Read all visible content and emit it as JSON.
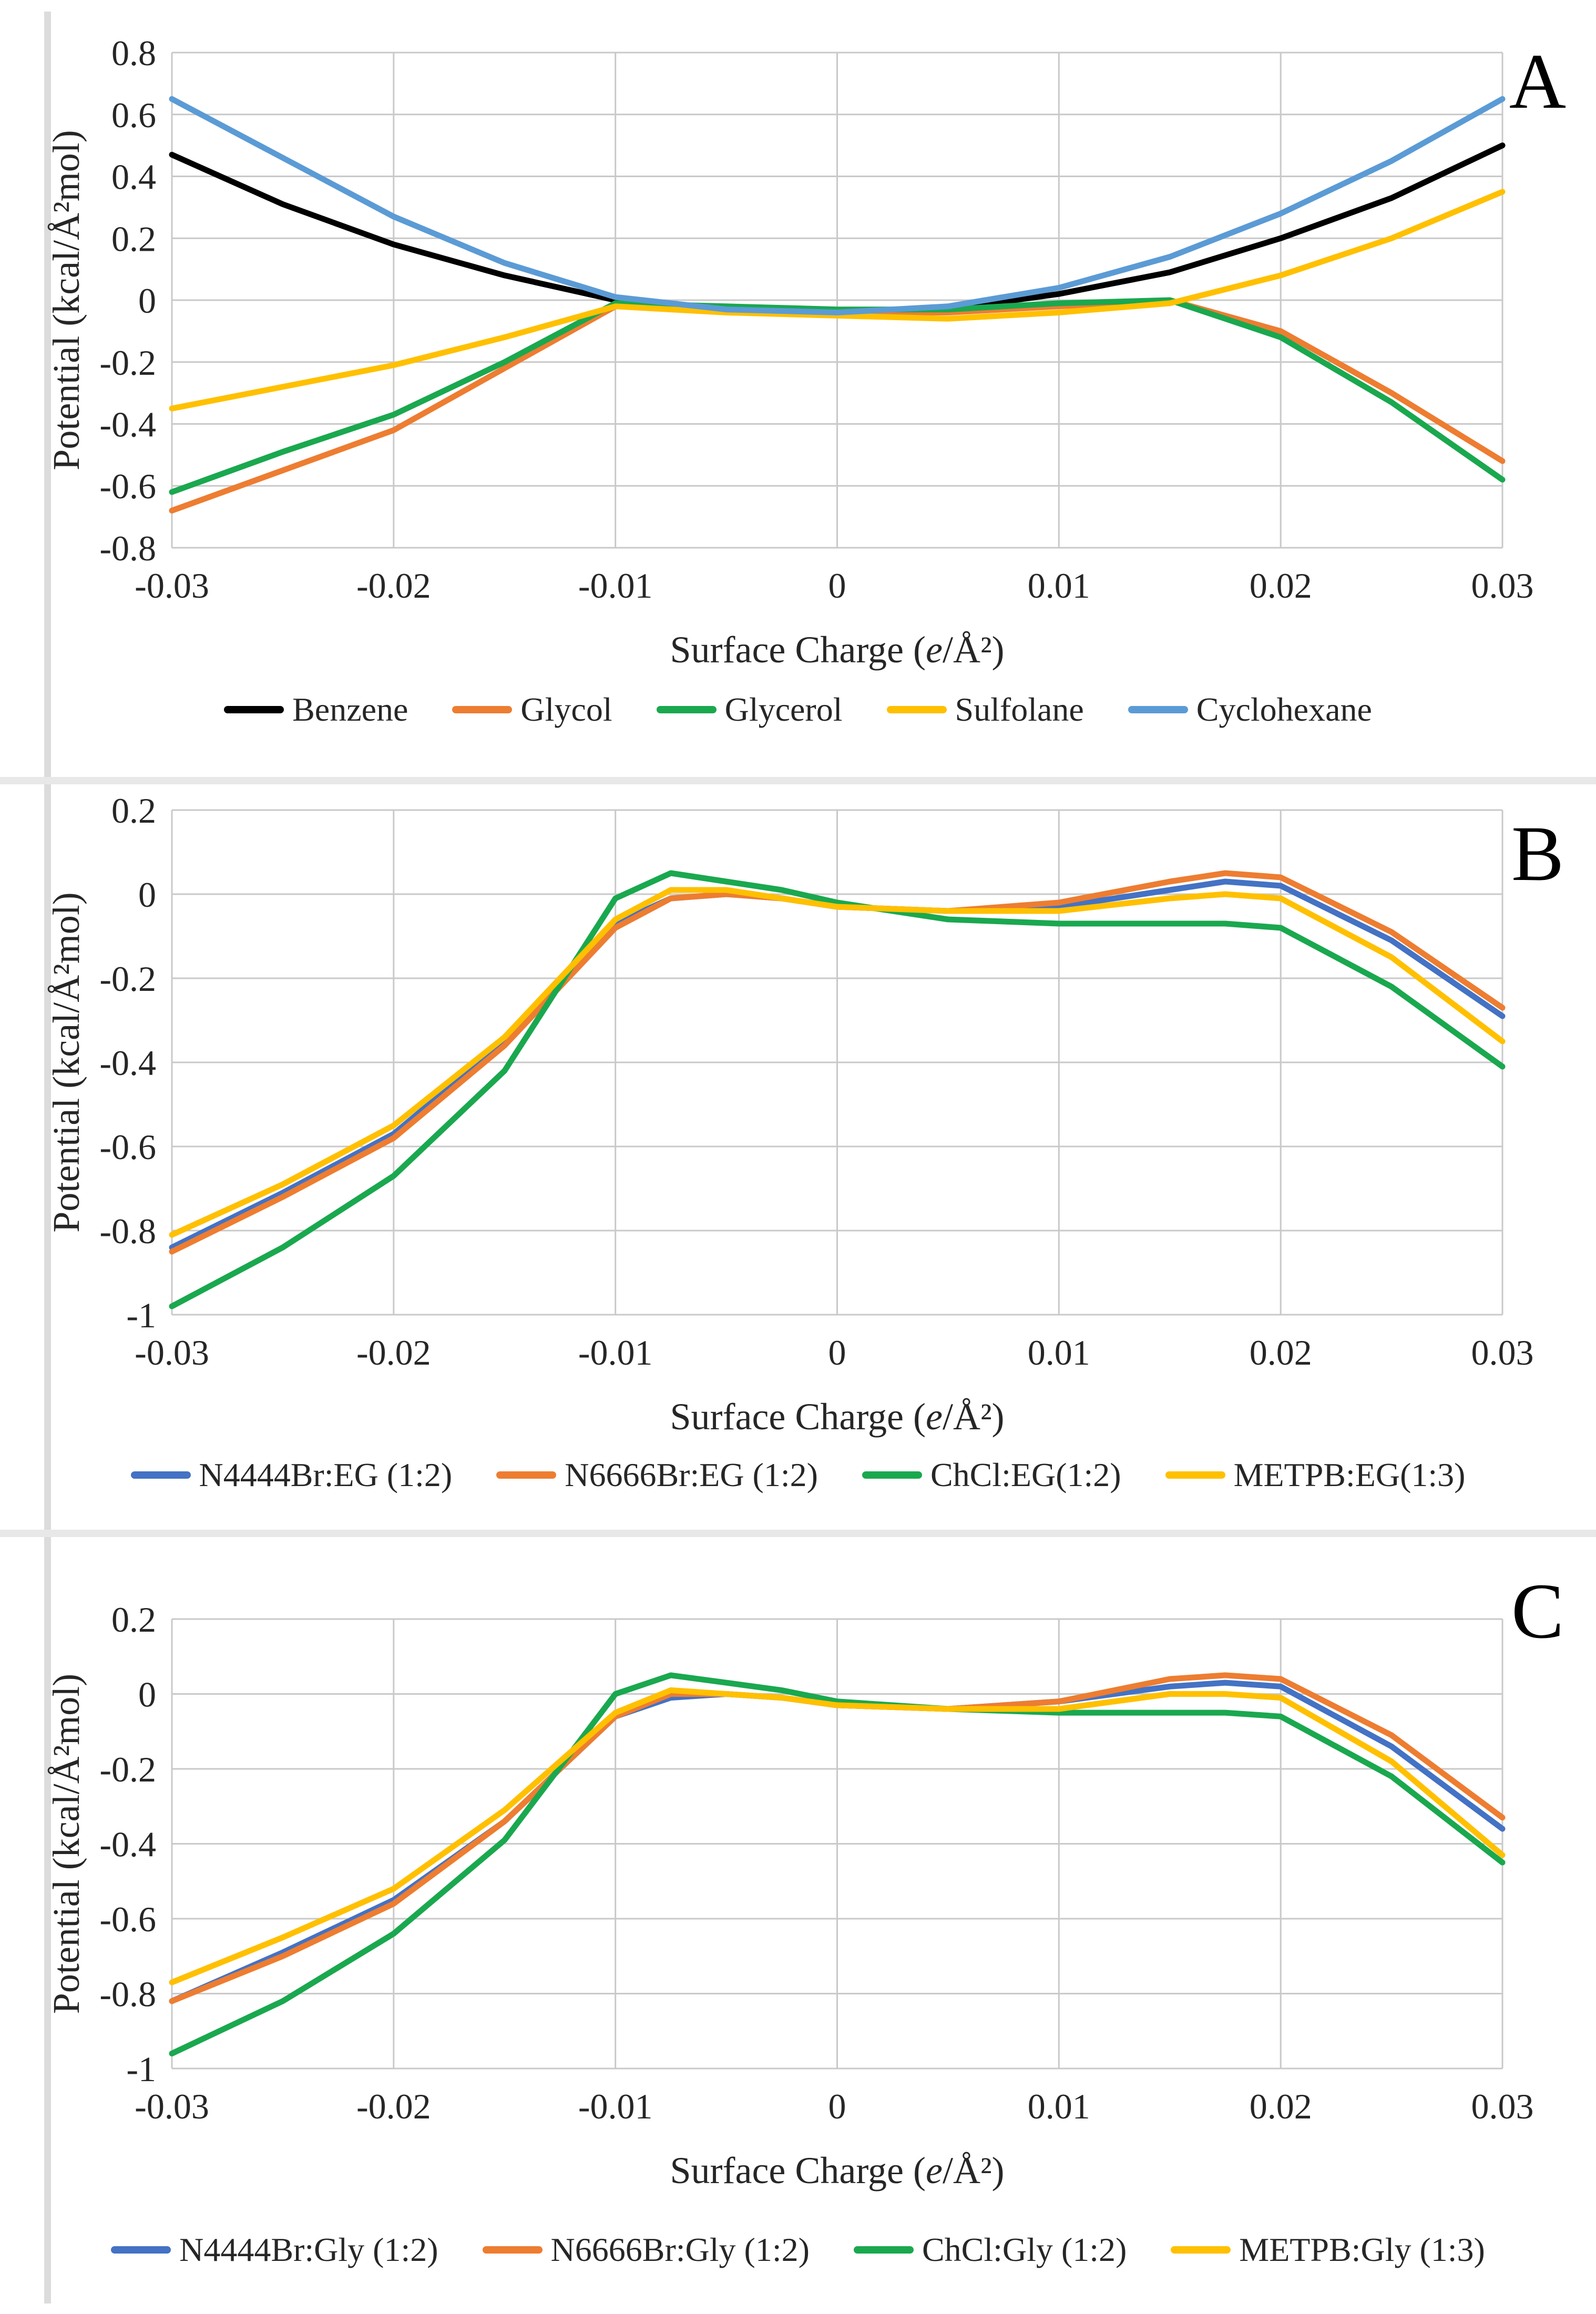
{
  "palette": {
    "black": "#000000",
    "orange": "#ED7D31",
    "green": "#1AA84F",
    "yellow": "#FFC000",
    "light_blue": "#5B9BD5",
    "blue": "#4472C4",
    "gridline": "#C9C9C9",
    "axis_text": "#262626",
    "separator": "#E8E8E8"
  },
  "chart_data": [
    {
      "type": "line",
      "panel_label": "A",
      "grid": true,
      "legend_position": "bottom",
      "x_axis": {
        "title": "Surface Charge (e/Å²)",
        "min": -0.03,
        "max": 0.03,
        "tick_values": [
          -0.03,
          -0.02,
          -0.01,
          0,
          0.01,
          0.02,
          0.03
        ],
        "tick_labels": [
          "-0.03",
          "-0.02",
          "-0.01",
          "0",
          "0.01",
          "0.02",
          "0.03"
        ]
      },
      "y_axis": {
        "title": "Potential (kcal/Å²mol)",
        "min": -0.8,
        "max": 0.8,
        "tick_values": [
          0.8,
          0.6,
          0.4,
          0.2,
          0,
          -0.2,
          -0.4,
          -0.6,
          -0.8
        ],
        "tick_labels": [
          "0.8",
          "0.6",
          "0.4",
          "0.2",
          "0",
          "-0.2",
          "-0.4",
          "-0.6",
          "-0.8"
        ]
      },
      "x": [
        -0.03,
        -0.025,
        -0.02,
        -0.015,
        -0.01,
        -0.005,
        0,
        0.005,
        0.01,
        0.015,
        0.02,
        0.025,
        0.03
      ],
      "series": [
        {
          "name": "Benzene",
          "color": "#000000",
          "values": [
            0.47,
            0.31,
            0.18,
            0.08,
            0.0,
            -0.03,
            -0.04,
            -0.03,
            0.02,
            0.09,
            0.2,
            0.33,
            0.5
          ]
        },
        {
          "name": "Glycol",
          "color": "#ED7D31",
          "values": [
            -0.68,
            -0.55,
            -0.42,
            -0.22,
            -0.02,
            -0.03,
            -0.04,
            -0.04,
            -0.02,
            0.0,
            -0.1,
            -0.3,
            -0.52
          ]
        },
        {
          "name": "Glycerol",
          "color": "#1AA84F",
          "values": [
            -0.62,
            -0.49,
            -0.37,
            -0.2,
            -0.01,
            -0.02,
            -0.03,
            -0.03,
            -0.01,
            0.0,
            -0.12,
            -0.33,
            -0.58
          ]
        },
        {
          "name": "Sulfolane",
          "color": "#FFC000",
          "values": [
            -0.35,
            -0.28,
            -0.21,
            -0.12,
            -0.02,
            -0.04,
            -0.05,
            -0.06,
            -0.04,
            -0.01,
            0.08,
            0.2,
            0.35
          ]
        },
        {
          "name": "Cyclohexane",
          "color": "#5B9BD5",
          "values": [
            0.65,
            0.46,
            0.27,
            0.12,
            0.01,
            -0.03,
            -0.04,
            -0.02,
            0.04,
            0.14,
            0.28,
            0.45,
            0.65
          ]
        }
      ]
    },
    {
      "type": "line",
      "panel_label": "B",
      "grid": true,
      "legend_position": "bottom",
      "x_axis": {
        "title": "Surface Charge (e/Å²)",
        "min": -0.03,
        "max": 0.03,
        "tick_values": [
          -0.03,
          -0.02,
          -0.01,
          0,
          0.01,
          0.02,
          0.03
        ],
        "tick_labels": [
          "-0.03",
          "-0.02",
          "-0.01",
          "0",
          "0.01",
          "0.02",
          "0.03"
        ]
      },
      "y_axis": {
        "title": "Potential (kcal/Å²mol)",
        "min": -1,
        "max": 0.2,
        "tick_values": [
          0.2,
          0,
          -0.2,
          -0.4,
          -0.6,
          -0.8,
          -1
        ],
        "tick_labels": [
          "0.2",
          "0",
          "-0.2",
          "-0.4",
          "-0.6",
          "-0.8",
          "-1"
        ]
      },
      "x": [
        -0.03,
        -0.025,
        -0.02,
        -0.015,
        -0.01,
        -0.0075,
        -0.005,
        -0.0025,
        0,
        0.005,
        0.01,
        0.015,
        0.0175,
        0.02,
        0.025,
        0.03
      ],
      "series": [
        {
          "name": "N4444Br:EG (1:2)",
          "color": "#4472C4",
          "values": [
            -0.84,
            -0.71,
            -0.57,
            -0.35,
            -0.07,
            -0.01,
            0.0,
            -0.01,
            -0.03,
            -0.04,
            -0.03,
            0.01,
            0.03,
            0.02,
            -0.11,
            -0.29
          ]
        },
        {
          "name": "N6666Br:EG (1:2)",
          "color": "#ED7D31",
          "values": [
            -0.85,
            -0.72,
            -0.58,
            -0.36,
            -0.08,
            -0.01,
            0.0,
            -0.01,
            -0.03,
            -0.04,
            -0.02,
            0.03,
            0.05,
            0.04,
            -0.09,
            -0.27
          ]
        },
        {
          "name": "ChCl:EG(1:2)",
          "color": "#1AA84F",
          "values": [
            -0.98,
            -0.84,
            -0.67,
            -0.42,
            -0.01,
            0.05,
            0.03,
            0.01,
            -0.02,
            -0.06,
            -0.07,
            -0.07,
            -0.07,
            -0.08,
            -0.22,
            -0.41
          ]
        },
        {
          "name": "METPB:EG(1:3)",
          "color": "#FFC000",
          "values": [
            -0.81,
            -0.69,
            -0.55,
            -0.34,
            -0.06,
            0.01,
            0.01,
            -0.01,
            -0.03,
            -0.04,
            -0.04,
            -0.01,
            0.0,
            -0.01,
            -0.15,
            -0.35
          ]
        }
      ]
    },
    {
      "type": "line",
      "panel_label": "C",
      "grid": true,
      "legend_position": "bottom",
      "x_axis": {
        "title": "Surface Charge (e/Å²)",
        "min": -0.03,
        "max": 0.03,
        "tick_values": [
          -0.03,
          -0.02,
          -0.01,
          0,
          0.01,
          0.02,
          0.03
        ],
        "tick_labels": [
          "-0.03",
          "-0.02",
          "-0.01",
          "0",
          "0.01",
          "0.02",
          "0.03"
        ]
      },
      "y_axis": {
        "title": "Potential (kcal/Å²mol)",
        "min": -1,
        "max": 0.2,
        "tick_values": [
          0.2,
          0,
          -0.2,
          -0.4,
          -0.6,
          -0.8,
          -1
        ],
        "tick_labels": [
          "0.2",
          "0",
          "-0.2",
          "-0.4",
          "-0.6",
          "-0.8",
          "-1"
        ]
      },
      "x": [
        -0.03,
        -0.025,
        -0.02,
        -0.015,
        -0.01,
        -0.0075,
        -0.005,
        -0.0025,
        0,
        0.005,
        0.01,
        0.015,
        0.0175,
        0.02,
        0.025,
        0.03
      ],
      "series": [
        {
          "name": "N4444Br:Gly (1:2)",
          "color": "#4472C4",
          "values": [
            -0.82,
            -0.69,
            -0.55,
            -0.34,
            -0.06,
            -0.01,
            0.0,
            -0.01,
            -0.03,
            -0.04,
            -0.02,
            0.02,
            0.03,
            0.02,
            -0.14,
            -0.36
          ]
        },
        {
          "name": "N6666Br:Gly (1:2)",
          "color": "#ED7D31",
          "values": [
            -0.82,
            -0.7,
            -0.56,
            -0.34,
            -0.06,
            0.0,
            0.0,
            -0.01,
            -0.03,
            -0.04,
            -0.02,
            0.04,
            0.05,
            0.04,
            -0.11,
            -0.33
          ]
        },
        {
          "name": "ChCl:Gly (1:2)",
          "color": "#1AA84F",
          "values": [
            -0.96,
            -0.82,
            -0.64,
            -0.39,
            0.0,
            0.05,
            0.03,
            0.01,
            -0.02,
            -0.04,
            -0.05,
            -0.05,
            -0.05,
            -0.06,
            -0.22,
            -0.45
          ]
        },
        {
          "name": "METPB:Gly (1:3)",
          "color": "#FFC000",
          "values": [
            -0.77,
            -0.65,
            -0.52,
            -0.31,
            -0.05,
            0.01,
            0.0,
            -0.01,
            -0.03,
            -0.04,
            -0.04,
            0.0,
            0.0,
            -0.01,
            -0.18,
            -0.43
          ]
        }
      ]
    }
  ]
}
